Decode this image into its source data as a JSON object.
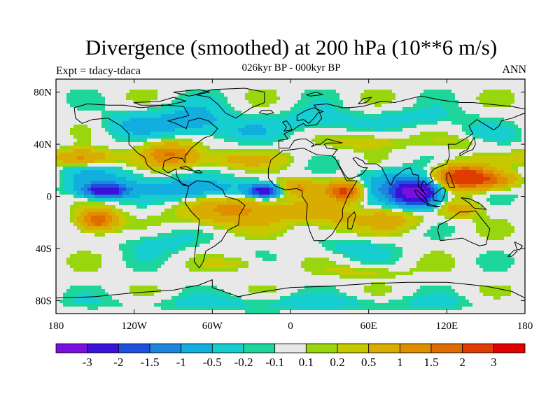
{
  "chart_data": {
    "type": "heatmap",
    "title": "Divergence (smoothed) at 200 hPa (10**6 m/s)",
    "subtitle": "026kyr BP - 000kyr BP",
    "left_string": "Expt = tdacy-tdaca",
    "right_string": "ANN",
    "x_ticks": [
      "180",
      "120W",
      "60W",
      "0",
      "60E",
      "120E",
      "180"
    ],
    "x_tick_values": [
      -180,
      -120,
      -60,
      0,
      60,
      120,
      180
    ],
    "y_ticks": [
      "80N",
      "40N",
      "0",
      "40S",
      "80S"
    ],
    "y_tick_values": [
      80,
      40,
      0,
      -40,
      -80
    ],
    "xlim": [
      -180,
      180
    ],
    "ylim": [
      -90,
      90
    ],
    "colorbar": {
      "colors": [
        "#7a10e0",
        "#3b10d8",
        "#1e4fe0",
        "#1b86dc",
        "#12aee0",
        "#16cdd0",
        "#1ed69c",
        "#e8e8e8",
        "#9ad60e",
        "#c8c800",
        "#d8ac00",
        "#e08e00",
        "#e06c00",
        "#e03c00",
        "#e00000"
      ],
      "labels": [
        "-3",
        "-2",
        "-1.5",
        "-1",
        "-0.5",
        "-0.2",
        "-0.1",
        "0.1",
        "0.2",
        "0.5",
        "1",
        "1.5",
        "2",
        "3"
      ],
      "levels": [
        -3,
        -2,
        -1.5,
        -1,
        -0.5,
        -0.2,
        -0.1,
        0.1,
        0.2,
        0.5,
        1,
        1.5,
        2,
        3
      ]
    },
    "field_blobs": [
      {
        "lon": 97,
        "lat": 2,
        "rlon": 16,
        "rlat": 9,
        "value": -3.5
      },
      {
        "lon": -142,
        "lat": 4,
        "rlon": 16,
        "rlat": 5,
        "value": -2.6
      },
      {
        "lon": -20,
        "lat": 4,
        "rlon": 12,
        "rlat": 5,
        "value": -2.4
      },
      {
        "lon": -70,
        "lat": 5,
        "rlon": 40,
        "rlat": 9,
        "value": -1.0
      },
      {
        "lon": -150,
        "lat": 12,
        "rlon": 30,
        "rlat": 10,
        "value": -0.8
      },
      {
        "lon": 80,
        "lat": 8,
        "rlon": 28,
        "rlat": 12,
        "value": -1.0
      },
      {
        "lon": -75,
        "lat": 58,
        "rlon": 28,
        "rlat": 12,
        "value": -0.8
      },
      {
        "lon": -120,
        "lat": 55,
        "rlon": 25,
        "rlat": 10,
        "value": -0.5
      },
      {
        "lon": 20,
        "lat": 58,
        "rlon": 30,
        "rlat": 10,
        "value": -0.4
      },
      {
        "lon": 100,
        "lat": 60,
        "rlon": 40,
        "rlat": 8,
        "value": -0.3
      },
      {
        "lon": -30,
        "lat": 50,
        "rlon": 20,
        "rlat": 8,
        "value": -0.4
      },
      {
        "lon": 150,
        "lat": 45,
        "rlon": 25,
        "rlat": 8,
        "value": -0.4
      },
      {
        "lon": -100,
        "lat": -35,
        "rlon": 30,
        "rlat": 10,
        "value": -0.3
      },
      {
        "lon": 10,
        "lat": -22,
        "rlon": 18,
        "rlat": 8,
        "value": -0.3
      },
      {
        "lon": 50,
        "lat": -40,
        "rlon": 30,
        "rlat": 8,
        "value": -0.3
      },
      {
        "lon": 0,
        "lat": -82,
        "rlon": 150,
        "rlat": 6,
        "value": -0.3
      },
      {
        "lon": 132,
        "lat": 15,
        "rlon": 20,
        "rlat": 9,
        "value": 2.6
      },
      {
        "lon": 157,
        "lat": 12,
        "rlon": 22,
        "rlat": 6,
        "value": 1.2
      },
      {
        "lon": 42,
        "lat": 4,
        "rlon": 14,
        "rlat": 7,
        "value": 2.2
      },
      {
        "lon": 5,
        "lat": 7,
        "rlon": 18,
        "rlat": 6,
        "value": 1.0
      },
      {
        "lon": -92,
        "lat": 32,
        "rlon": 20,
        "rlat": 9,
        "value": 1.5
      },
      {
        "lon": -160,
        "lat": 30,
        "rlon": 22,
        "rlat": 6,
        "value": 1.2
      },
      {
        "lon": -148,
        "lat": -18,
        "rlon": 14,
        "rlat": 8,
        "value": 2.0
      },
      {
        "lon": -45,
        "lat": -10,
        "rlon": 35,
        "rlat": 12,
        "value": 1.2
      },
      {
        "lon": 20,
        "lat": -15,
        "rlon": 30,
        "rlat": 12,
        "value": 0.8
      },
      {
        "lon": 75,
        "lat": -18,
        "rlon": 25,
        "rlat": 8,
        "value": 0.7
      },
      {
        "lon": 130,
        "lat": -10,
        "rlon": 15,
        "rlat": 6,
        "value": 0.8
      },
      {
        "lon": -40,
        "lat": 28,
        "rlon": 35,
        "rlat": 6,
        "value": 0.6
      },
      {
        "lon": 60,
        "lat": 42,
        "rlon": 30,
        "rlat": 6,
        "value": 0.4
      },
      {
        "lon": 140,
        "lat": 42,
        "rlon": 25,
        "rlat": 6,
        "value": 0.4
      },
      {
        "lon": -40,
        "lat": -52,
        "rlon": 20,
        "rlat": 5,
        "value": 0.3
      },
      {
        "lon": 60,
        "lat": -58,
        "rlon": 30,
        "rlat": 5,
        "value": 0.3
      }
    ]
  }
}
